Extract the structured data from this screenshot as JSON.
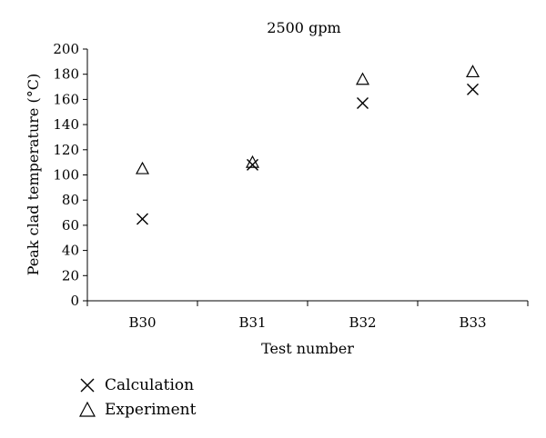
{
  "chart_data": {
    "type": "scatter",
    "title": "2500 gpm",
    "xlabel": "Test number",
    "ylabel": "Peak clad temperature (°C)",
    "categories": [
      "B30",
      "B31",
      "B32",
      "B33"
    ],
    "ylim": [
      0,
      200
    ],
    "yticks": [
      0,
      20,
      40,
      60,
      80,
      100,
      120,
      140,
      160,
      180,
      200
    ],
    "grid": false,
    "legend_position": "bottom-left",
    "series": [
      {
        "name": "Calculation",
        "marker": "x-icon",
        "values": [
          65,
          108,
          157,
          168
        ]
      },
      {
        "name": "Experiment",
        "marker": "triangle-icon",
        "values": [
          105,
          110,
          176,
          182
        ]
      }
    ]
  }
}
